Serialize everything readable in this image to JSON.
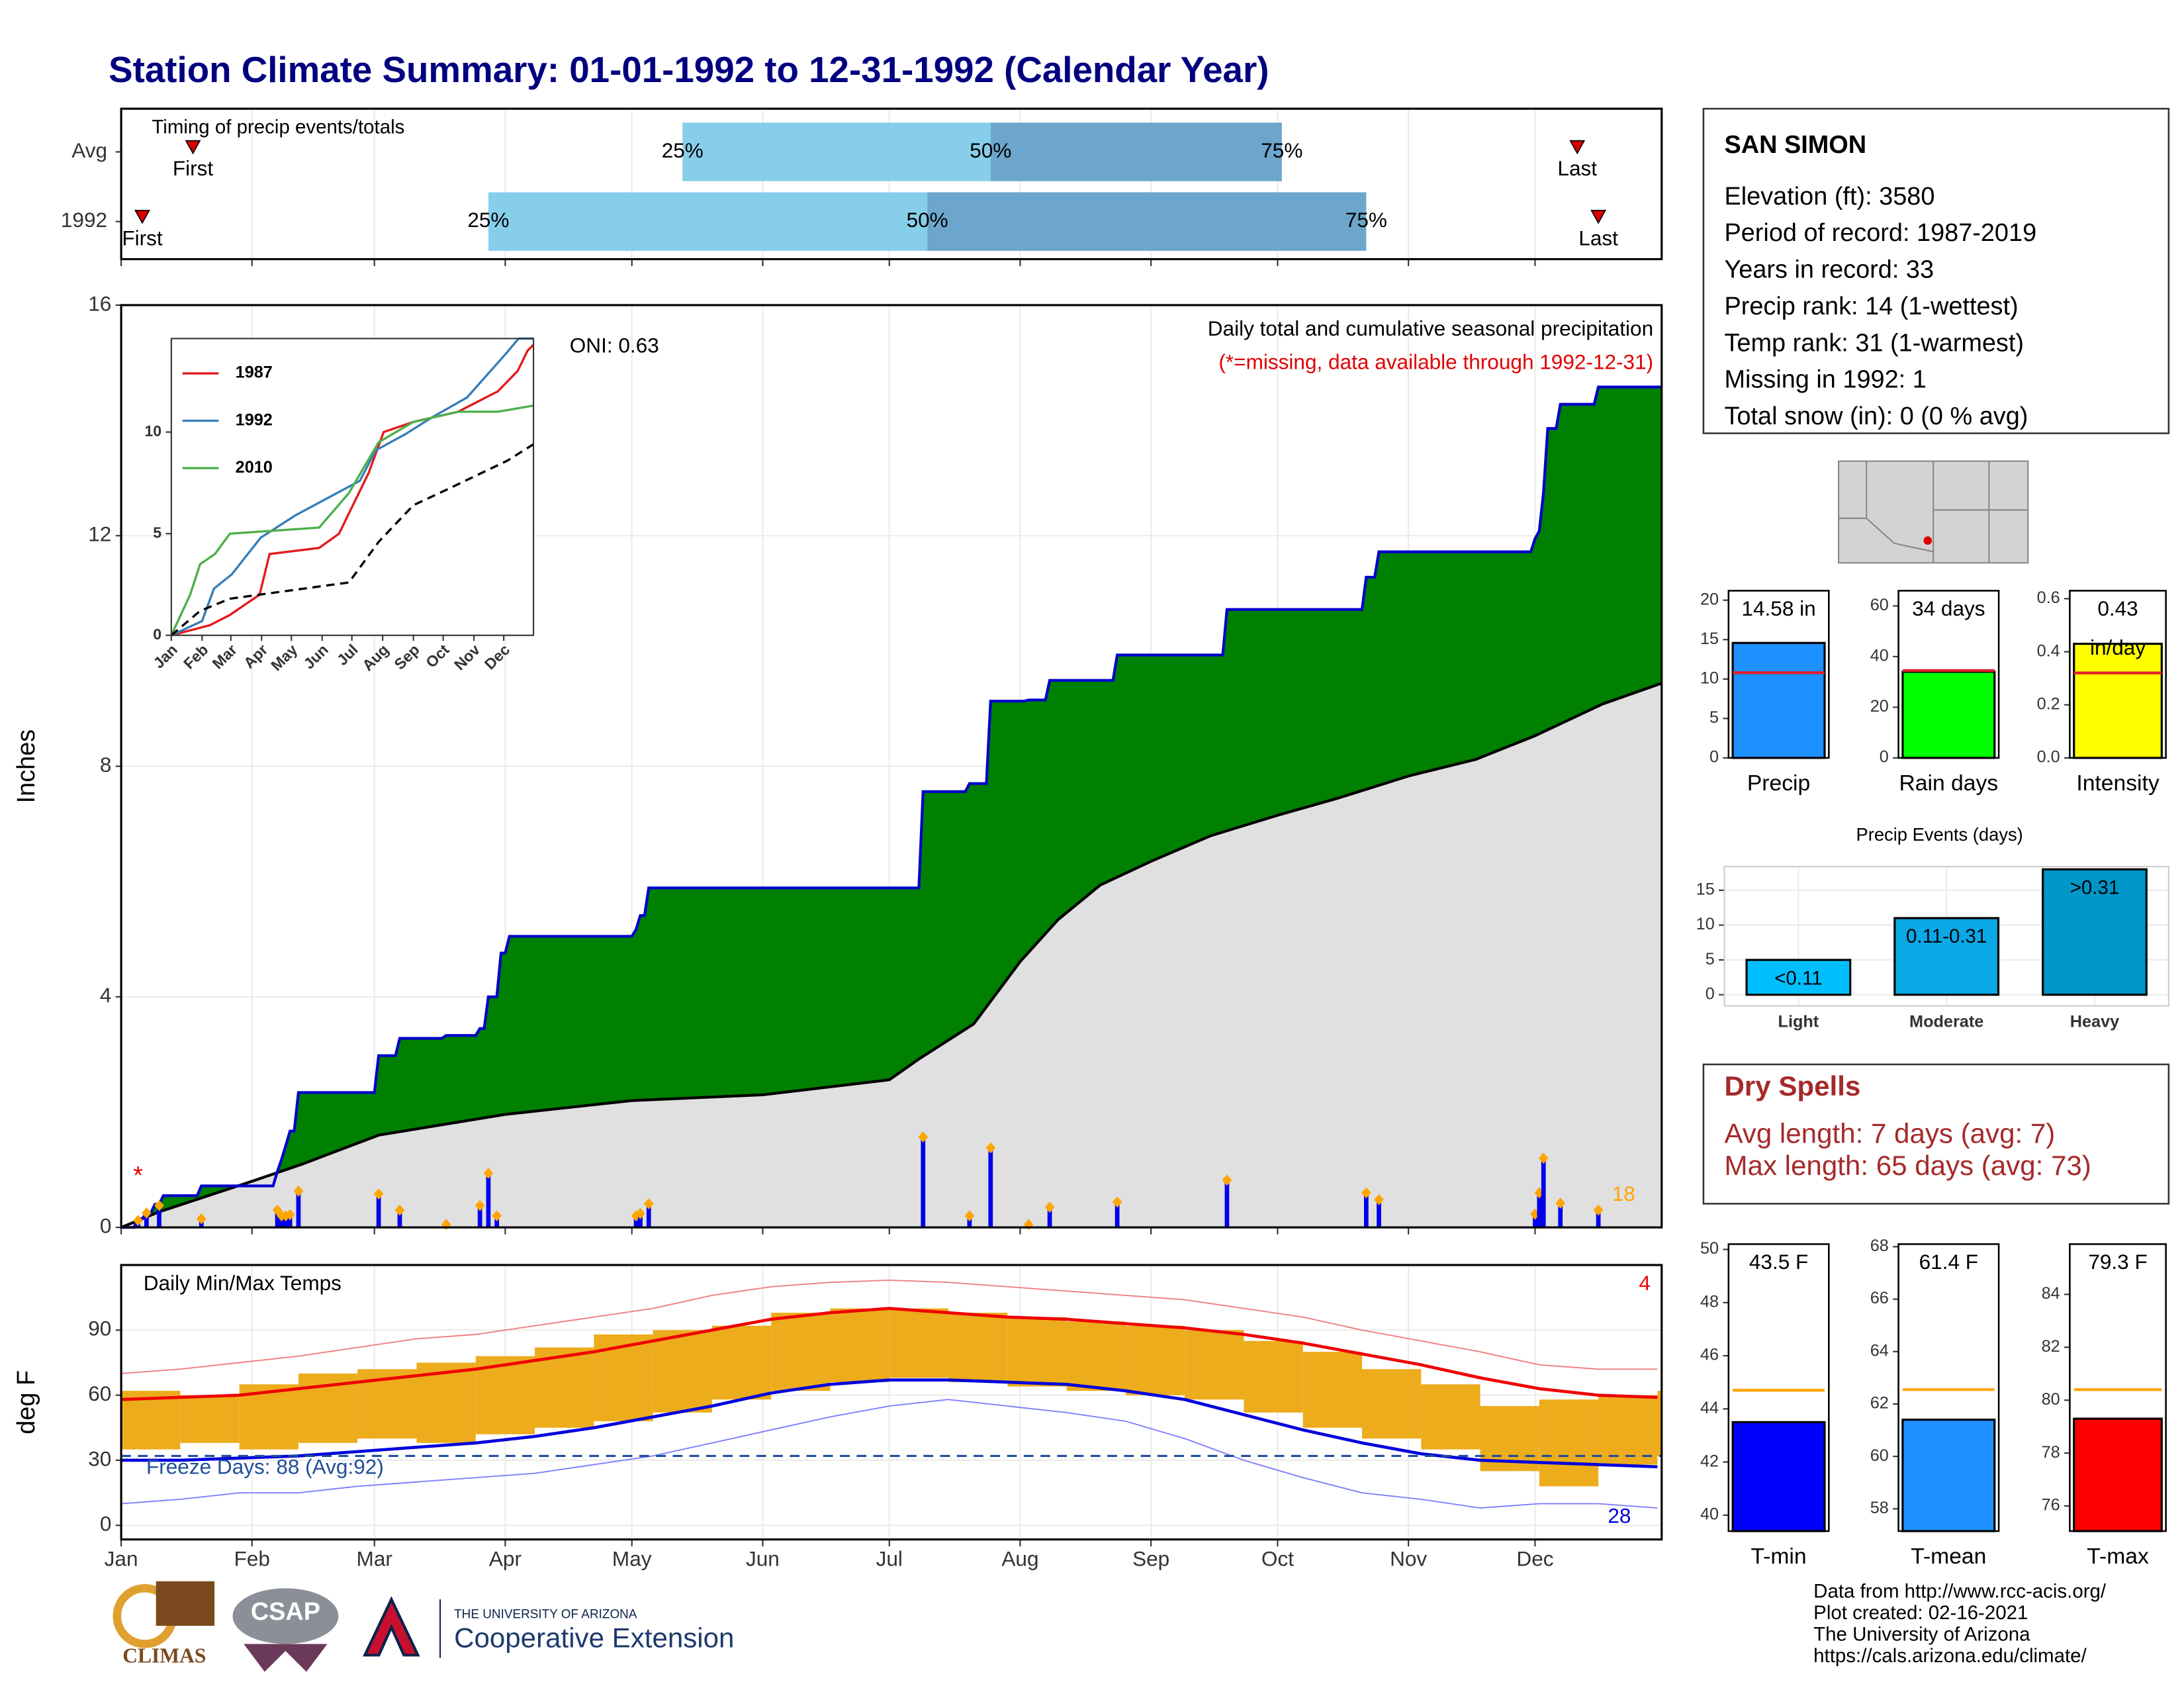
{
  "title": "Station Climate Summary: 01-01-1992 to 12-31-1992 (Calendar Year)",
  "station": {
    "name": "SAN SIMON",
    "lines": [
      "Elevation (ft): 3580",
      "Period of record: 1987-2019",
      "Years in record: 33",
      "Precip rank: 14 (1-wettest)",
      "Temp rank: 31 (1-warmest)",
      "Missing in 1992: 1",
      "Total snow (in): 0 (0 % avg)"
    ]
  },
  "dry_spells": {
    "title": "Dry Spells",
    "lines": [
      "Avg length: 7 days (avg: 7)",
      "Max length: 65 days (avg: 73)"
    ]
  },
  "footer": {
    "logos": [
      "CLIMAS",
      "CSAP"
    ],
    "university": "THE UNIVERSITY OF ARIZONA",
    "extension": "Cooperative Extension",
    "credits": [
      "Data from http://www.rcc-acis.org/",
      "Plot created: 02-16-2021",
      "The University of Arizona",
      "https://cals.arizona.edu/climate/"
    ]
  },
  "chart_data": [
    {
      "type": "timing",
      "title": "Timing of precip events/totals",
      "categories": [
        "Avg",
        "1992"
      ],
      "xlim": [
        1,
        366
      ],
      "xticks": [
        1,
        32,
        61,
        92,
        122,
        153,
        183,
        214,
        245,
        275,
        306,
        336
      ],
      "first": [
        18,
        6
      ],
      "last": [
        346,
        351
      ],
      "quantiles": [
        [
          134,
          207,
          276
        ],
        [
          88,
          192,
          296
        ]
      ],
      "quantile_labels": [
        "25%",
        "50%",
        "75%"
      ],
      "first_label": "First",
      "last_label": "Last",
      "colors": [
        "#87ceeb",
        "#6ca6cd"
      ],
      "marker_color": "#dd0000"
    },
    {
      "type": "precip",
      "title": "Daily total and cumulative seasonal precipitation",
      "note": "(*=missing, data available through 1992-12-31)",
      "note_color": "#e00000",
      "oni": "ONI: 0.63",
      "count_label": "18",
      "count_color": "#ffa500",
      "y_label": "Inches",
      "missing": {
        "label": "*",
        "x": 5,
        "y": 0.97,
        "color": "#e00000"
      },
      "xlim": [
        1,
        366
      ],
      "xticks": [
        1,
        32,
        61,
        92,
        122,
        153,
        183,
        214,
        245,
        275,
        306,
        336
      ],
      "ylim": [
        0,
        16
      ],
      "yticks": [
        0,
        4,
        8,
        12,
        16
      ],
      "grid": true,
      "cumulative": {
        "color": "#0000cc",
        "fill": "#008000",
        "x": [
          1,
          4,
          5,
          6,
          7,
          8,
          9,
          10,
          11,
          19,
          20,
          37,
          38,
          39,
          40,
          41,
          42,
          43,
          61,
          62,
          66,
          67,
          77,
          78,
          85,
          86,
          87,
          88,
          90,
          91,
          92,
          93,
          122,
          123,
          124,
          125,
          126,
          190,
          191,
          201,
          202,
          206,
          207,
          215,
          216,
          220,
          221,
          236,
          237,
          262,
          263,
          295,
          296,
          298,
          299,
          335,
          336,
          337,
          338,
          339,
          341,
          342,
          350,
          351,
          366
        ],
        "values": [
          0,
          0,
          0.15,
          0.15,
          0.25,
          0.25,
          0.4,
          0.4,
          0.55,
          0.55,
          0.72,
          0.72,
          0.97,
          1.18,
          1.42,
          1.67,
          1.67,
          2.34,
          2.34,
          2.98,
          2.98,
          3.28,
          3.28,
          3.33,
          3.33,
          3.45,
          3.45,
          4.0,
          4.0,
          4.76,
          4.76,
          5.05,
          5.05,
          5.17,
          5.41,
          5.41,
          5.89,
          5.89,
          7.56,
          7.56,
          7.7,
          7.7,
          9.13,
          9.13,
          9.15,
          9.15,
          9.49,
          9.49,
          9.93,
          9.93,
          10.72,
          10.72,
          11.28,
          11.28,
          11.72,
          11.72,
          11.95,
          12.08,
          12.75,
          13.86,
          13.86,
          14.28,
          14.28,
          14.58,
          14.58
        ]
      },
      "average": {
        "color": "#000000",
        "fill": "#e0e0e0",
        "x": [
          1,
          10,
          32,
          44,
          62,
          92,
          122,
          153,
          183,
          190,
          203,
          214,
          223,
          233,
          245,
          259,
          275,
          289,
          306,
          322,
          336,
          352,
          366
        ],
        "values": [
          0,
          0.27,
          0.8,
          1.1,
          1.6,
          1.96,
          2.2,
          2.3,
          2.56,
          2.92,
          3.53,
          4.61,
          5.34,
          5.94,
          6.35,
          6.79,
          7.15,
          7.44,
          7.83,
          8.12,
          8.53,
          9.08,
          9.44
        ]
      },
      "daily": {
        "color": "#0000ee",
        "marker_color": "#ffa500",
        "x": [
          5,
          7,
          10,
          20,
          38,
          39,
          40,
          41,
          43,
          62,
          67,
          78,
          86,
          88,
          90,
          123,
          124,
          126,
          191,
          202,
          207,
          216,
          221,
          237,
          263,
          296,
          299,
          336,
          337,
          338,
          342,
          351
        ],
        "values": [
          0.12,
          0.25,
          0.38,
          0.15,
          0.3,
          0.2,
          0.2,
          0.22,
          0.63,
          0.58,
          0.3,
          0.05,
          0.38,
          0.94,
          0.2,
          0.2,
          0.24,
          0.41,
          1.57,
          0.2,
          1.38,
          0.05,
          0.35,
          0.44,
          0.82,
          0.6,
          0.48,
          0.23,
          0.6,
          1.2,
          0.42,
          0.3
        ]
      }
    },
    {
      "type": "line",
      "xlim": [
        1,
        366
      ],
      "xticks": [
        {
          "value": 1,
          "label": "Jan"
        },
        {
          "value": 32,
          "label": "Feb"
        },
        {
          "value": 61,
          "label": "Mar"
        },
        {
          "value": 92,
          "label": "Apr"
        },
        {
          "value": 122,
          "label": "May"
        },
        {
          "value": 153,
          "label": "Jun"
        },
        {
          "value": 183,
          "label": "Jul"
        },
        {
          "value": 214,
          "label": "Aug"
        },
        {
          "value": 245,
          "label": "Sep"
        },
        {
          "value": 275,
          "label": "Oct"
        },
        {
          "value": 306,
          "label": "Nov"
        },
        {
          "value": 336,
          "label": "Dec"
        }
      ],
      "ylim": [
        0,
        14.6
      ],
      "yticks": [
        0,
        5,
        10
      ],
      "series": [
        {
          "name": "1987",
          "color": "#e41a1c",
          "x": [
            1,
            40,
            60,
            90,
            100,
            150,
            170,
            180,
            200,
            215,
            245,
            290,
            330,
            350,
            360,
            366
          ],
          "values": [
            0,
            0.5,
            1.0,
            2.0,
            4.0,
            4.3,
            5.0,
            6.0,
            8.0,
            10.0,
            10.5,
            11.0,
            12.0,
            13.0,
            14.0,
            14.3
          ]
        },
        {
          "name": "1992",
          "color": "#377eb8",
          "x": [
            1,
            32,
            44,
            62,
            91,
            126,
            191,
            207,
            237,
            263,
            299,
            339,
            351,
            366
          ],
          "values": [
            0,
            0.7,
            2.3,
            3.0,
            4.8,
            5.9,
            7.6,
            9.1,
            9.9,
            10.7,
            11.7,
            13.9,
            14.6,
            14.6
          ]
        },
        {
          "name": "2010",
          "color": "#4daf4a",
          "x": [
            1,
            20,
            30,
            45,
            60,
            150,
            180,
            210,
            245,
            290,
            330,
            366
          ],
          "values": [
            0,
            2.0,
            3.5,
            4.0,
            5.0,
            5.3,
            7.0,
            9.5,
            10.5,
            11.0,
            11.0,
            11.3
          ]
        },
        {
          "color": "#000000",
          "dashed": true,
          "x": [
            1,
            30,
            60,
            120,
            180,
            210,
            245,
            280,
            310,
            340,
            366
          ],
          "values": [
            0,
            1.2,
            1.8,
            2.2,
            2.6,
            4.6,
            6.4,
            7.2,
            7.9,
            8.6,
            9.4
          ]
        }
      ]
    },
    {
      "type": "temps",
      "title": "Daily Min/Max Temps",
      "y_label": "deg F",
      "freeze_label": "Freeze Days: 88 (Avg:92)",
      "freeze_line": 32,
      "top_count": "4",
      "bottom_count": "28",
      "xlim": [
        1,
        366
      ],
      "xticks": [
        {
          "value": 1,
          "label": "Jan"
        },
        {
          "value": 32,
          "label": "Feb"
        },
        {
          "value": 61,
          "label": "Mar"
        },
        {
          "value": 92,
          "label": "Apr"
        },
        {
          "value": 122,
          "label": "May"
        },
        {
          "value": 153,
          "label": "Jun"
        },
        {
          "value": 183,
          "label": "Jul"
        },
        {
          "value": 214,
          "label": "Aug"
        },
        {
          "value": 245,
          "label": "Sep"
        },
        {
          "value": 275,
          "label": "Oct"
        },
        {
          "value": 306,
          "label": "Nov"
        },
        {
          "value": 336,
          "label": "Dec"
        }
      ],
      "ylim": [
        -6.5,
        120
      ],
      "yticks": [
        0,
        30,
        60,
        90
      ],
      "grid": true,
      "range_color": "#ecac1c",
      "avg_max_color": "#ee0000",
      "avg_min_color": "#0000dd",
      "record_max_color": "#f08080",
      "record_min_color": "#7f7fff",
      "freeze_color": "#1f4e99",
      "x": [
        1,
        15,
        29,
        43,
        57,
        71,
        85,
        99,
        113,
        127,
        141,
        155,
        169,
        183,
        197,
        211,
        225,
        239,
        253,
        267,
        281,
        295,
        309,
        323,
        337,
        351,
        365
      ],
      "tmax": [
        62,
        60,
        65,
        70,
        72,
        75,
        78,
        82,
        88,
        90,
        92,
        98,
        100,
        100,
        98,
        96,
        94,
        92,
        90,
        85,
        80,
        72,
        65,
        55,
        58,
        60,
        62
      ],
      "tmin": [
        35,
        38,
        35,
        38,
        40,
        38,
        42,
        45,
        48,
        52,
        58,
        62,
        66,
        68,
        66,
        64,
        62,
        60,
        58,
        52,
        45,
        40,
        35,
        25,
        18,
        28,
        32
      ],
      "avg_max": [
        58,
        59,
        60,
        63,
        66,
        69,
        72,
        76,
        80,
        85,
        90,
        95,
        98,
        100,
        98,
        96,
        95,
        93,
        91,
        88,
        84,
        79,
        74,
        68,
        63,
        60,
        59
      ],
      "avg_min": [
        30,
        30,
        31,
        32,
        34,
        36,
        38,
        41,
        45,
        50,
        55,
        61,
        65,
        67,
        67,
        66,
        65,
        62,
        58,
        51,
        44,
        38,
        33,
        30,
        29,
        28,
        27
      ],
      "record_max": [
        70,
        72,
        75,
        78,
        82,
        86,
        88,
        92,
        96,
        100,
        106,
        110,
        112,
        113,
        112,
        110,
        108,
        106,
        104,
        100,
        96,
        90,
        85,
        80,
        74,
        72,
        72
      ],
      "record_min": [
        10,
        12,
        15,
        15,
        18,
        20,
        22,
        24,
        28,
        32,
        38,
        44,
        50,
        55,
        58,
        55,
        52,
        48,
        40,
        30,
        22,
        15,
        12,
        8,
        10,
        10,
        8
      ]
    },
    {
      "type": "gauge",
      "category": "Precip",
      "value": 14.58,
      "value_label": [
        "14.58 in"
      ],
      "avg": 10.8,
      "color": "#1e90ff",
      "avg_color": "#e0202a",
      "ylim": [
        0,
        21.2
      ],
      "yticks": [
        0,
        5,
        10,
        15,
        20
      ]
    },
    {
      "type": "gauge",
      "category": "Rain days",
      "value": 34,
      "value_label": [
        "34 days"
      ],
      "avg": 34.5,
      "color": "#00ff00",
      "avg_color": "#e0202a",
      "ylim": [
        0,
        66
      ],
      "yticks": [
        0,
        20,
        40,
        60
      ]
    },
    {
      "type": "gauge",
      "category": "Intensity",
      "value": 0.43,
      "value_label": [
        "0.43",
        "in/day"
      ],
      "avg": 0.32,
      "color": "#ffff00",
      "avg_color": "#e0202a",
      "ylim": [
        0,
        0.63
      ],
      "yticks": [
        {
          "value": 0,
          "label": "0.0"
        },
        {
          "value": 0.2,
          "label": "0.2"
        },
        {
          "value": 0.4,
          "label": "0.4"
        },
        {
          "value": 0.6,
          "label": "0.6"
        }
      ]
    },
    {
      "type": "bar",
      "title": "Precip Events (days)",
      "categories": [
        "Light",
        "Moderate",
        "Heavy"
      ],
      "bin_labels": [
        "<0.11",
        "0.11-0.31",
        ">0.31"
      ],
      "values": [
        5,
        11,
        18
      ],
      "colors": [
        "#00bfff",
        "#0aa8e6",
        "#0096c8"
      ],
      "ylim": [
        -1.6,
        18.4
      ],
      "yticks": [
        0,
        5,
        10,
        15
      ],
      "grid": true
    },
    {
      "type": "gauge",
      "category": "T-min",
      "value": 43.5,
      "value_label": [
        "43.5 F"
      ],
      "avg": 44.7,
      "color": "#0000ff",
      "avg_color": "#ffa500",
      "ylim": [
        39.4,
        50.2
      ],
      "yticks": [
        40,
        42,
        44,
        46,
        48,
        50
      ]
    },
    {
      "type": "gauge",
      "category": "T-mean",
      "value": 61.4,
      "value_label": [
        "61.4 F"
      ],
      "avg": 62.55,
      "color": "#1e90ff",
      "avg_color": "#ffa500",
      "ylim": [
        57.15,
        68.1
      ],
      "yticks": [
        58,
        60,
        62,
        64,
        66,
        68
      ]
    },
    {
      "type": "gauge",
      "category": "T-max",
      "value": 79.3,
      "value_label": [
        "79.3 F"
      ],
      "avg": 80.4,
      "color": "#ff0000",
      "avg_color": "#ffa500",
      "ylim": [
        75.05,
        85.9
      ],
      "yticks": [
        76,
        78,
        80,
        82,
        84
      ]
    }
  ]
}
